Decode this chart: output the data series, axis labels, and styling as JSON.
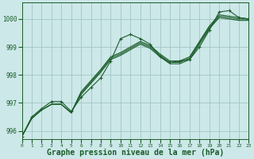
{
  "bg_color": "#cce8e8",
  "grid_color": "#9bbfbf",
  "line_color": "#1a5c2a",
  "marker_color": "#1a5c2a",
  "xlabel": "Graphe pression niveau de la mer (hPa)",
  "xlabel_fontsize": 7,
  "xlim": [
    0,
    23
  ],
  "ylim": [
    995.7,
    1000.6
  ],
  "yticks": [
    996,
    997,
    998,
    999,
    1000
  ],
  "xticks": [
    0,
    1,
    2,
    3,
    4,
    5,
    6,
    7,
    8,
    9,
    10,
    11,
    12,
    13,
    14,
    15,
    16,
    17,
    18,
    19,
    20,
    21,
    22,
    23
  ],
  "series": [
    {
      "data": [
        995.8,
        996.5,
        996.8,
        997.05,
        997.05,
        996.7,
        997.2,
        997.55,
        997.9,
        998.5,
        999.3,
        999.45,
        999.3,
        999.1,
        998.65,
        998.45,
        998.5,
        998.55,
        999.0,
        999.6,
        1000.25,
        1000.3,
        1000.05,
        1000.0
      ],
      "marker": "+"
    },
    {
      "data": [
        995.8,
        996.45,
        996.75,
        996.95,
        996.95,
        996.65,
        997.3,
        997.7,
        998.1,
        998.55,
        998.7,
        998.9,
        999.1,
        998.95,
        998.65,
        998.4,
        998.4,
        998.55,
        999.1,
        999.65,
        1000.05,
        1000.0,
        999.95,
        999.95
      ],
      "marker": null
    },
    {
      "data": [
        995.8,
        996.45,
        996.75,
        996.95,
        996.95,
        996.65,
        997.35,
        997.75,
        998.15,
        998.6,
        998.75,
        998.95,
        999.15,
        999.0,
        998.7,
        998.45,
        998.45,
        998.6,
        999.15,
        999.7,
        1000.1,
        1000.05,
        1000.0,
        1000.0
      ],
      "marker": null
    },
    {
      "data": [
        995.8,
        996.45,
        996.75,
        996.95,
        996.95,
        996.65,
        997.4,
        997.8,
        998.2,
        998.65,
        998.8,
        999.0,
        999.2,
        999.05,
        998.75,
        998.5,
        998.5,
        998.65,
        999.2,
        999.75,
        1000.15,
        1000.1,
        1000.05,
        1000.0
      ],
      "marker": null
    }
  ]
}
